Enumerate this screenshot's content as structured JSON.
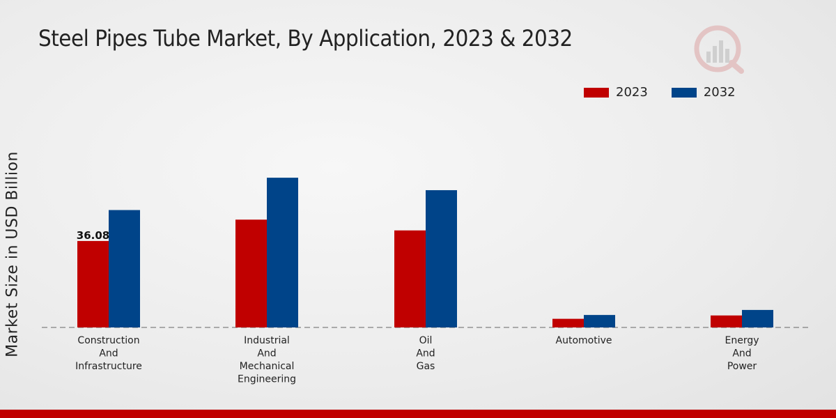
{
  "title": "Steel Pipes Tube Market, By Application, 2023 & 2032",
  "colors": {
    "series_2023": "#c00000",
    "series_2032": "#004489",
    "footer": "#c00000"
  },
  "chart_data": {
    "type": "bar",
    "title": "Steel Pipes Tube Market, By Application, 2023 & 2032",
    "xlabel": "",
    "ylabel": "Market Size in USD Billion",
    "ylim": [
      0,
      70
    ],
    "grid": false,
    "legend_position": "top-right",
    "categories": [
      [
        "Construction",
        "And",
        "Infrastructure"
      ],
      [
        "Industrial",
        "And",
        "Mechanical",
        "Engineering"
      ],
      [
        "Oil",
        "And",
        "Gas"
      ],
      [
        "Automotive"
      ],
      [
        "Energy",
        "And",
        "Power"
      ]
    ],
    "series": [
      {
        "name": "2023",
        "color": "#c00000",
        "values": [
          36.08,
          45.0,
          40.5,
          3.6,
          5.0
        ]
      },
      {
        "name": "2032",
        "color": "#004489",
        "values": [
          49.0,
          62.5,
          57.3,
          5.2,
          7.3
        ]
      }
    ],
    "data_labels": [
      {
        "series": 0,
        "index": 0,
        "text": "36.08"
      }
    ]
  }
}
